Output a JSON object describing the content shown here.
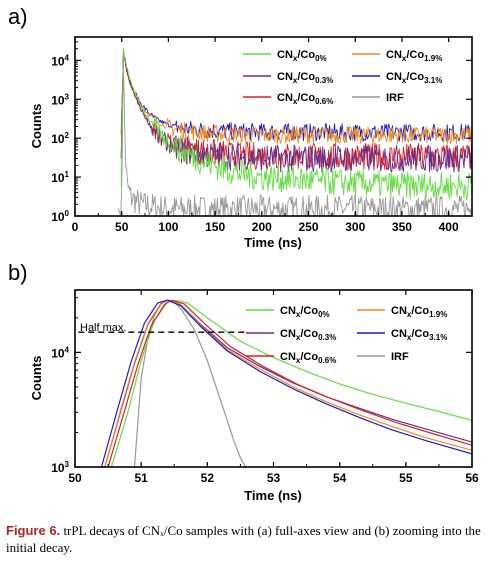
{
  "figure": {
    "caption_label": "Figure 6.",
    "caption_text": " trPL decays of CNₓ/Co samples with (a) full-axes view and (b) zooming into the initial decay."
  },
  "colors": {
    "co0": "#66dd44",
    "co03": "#6a2c8a",
    "co06": "#e02020",
    "co19": "#f08a20",
    "co31": "#1a1ad0",
    "irf": "#999999"
  },
  "chart_data": [
    {
      "panel": "a)",
      "type": "line",
      "xlabel": "Time (ns)",
      "ylabel": "Counts",
      "xlim": [
        0,
        425
      ],
      "ylim": [
        1,
        40000
      ],
      "yscale": "log",
      "xticks": [
        0,
        50,
        100,
        150,
        200,
        250,
        300,
        350,
        400
      ],
      "yticks": [
        1,
        10,
        100,
        1000,
        10000
      ],
      "ytick_labels": [
        {
          "base": "10",
          "exp": "0"
        },
        {
          "base": "10",
          "exp": "1"
        },
        {
          "base": "10",
          "exp": "2"
        },
        {
          "base": "10",
          "exp": "3"
        },
        {
          "base": "10",
          "exp": "4"
        }
      ],
      "grid": false,
      "legend_position": "top-right",
      "series": [
        {
          "key": "co0",
          "name": "CNx/Co0%",
          "sub": "0%",
          "background": 6,
          "peak": 25000,
          "x": [
            51,
            55,
            60,
            70,
            80,
            90,
            100,
            120,
            140,
            160,
            180,
            200,
            230,
            260,
            300,
            350,
            425
          ],
          "y": [
            25000,
            7000,
            2500,
            700,
            280,
            140,
            80,
            40,
            24,
            16,
            12,
            10,
            9,
            8,
            7,
            6,
            6
          ]
        },
        {
          "key": "co03",
          "name": "CNx/Co0.3%",
          "sub": "0.3%",
          "background": 30,
          "peak": 25000,
          "x": [
            51,
            55,
            60,
            70,
            80,
            90,
            100,
            120,
            140,
            160,
            180,
            200,
            230,
            260,
            300,
            350,
            425
          ],
          "y": [
            25000,
            6500,
            2200,
            600,
            220,
            110,
            70,
            45,
            38,
            34,
            32,
            31,
            30,
            30,
            30,
            30,
            30
          ]
        },
        {
          "key": "co06",
          "name": "CNx/Co0.6%",
          "sub": "0.6%",
          "background": 33,
          "peak": 25000,
          "x": [
            51,
            55,
            60,
            70,
            80,
            90,
            100,
            120,
            140,
            160,
            180,
            200,
            230,
            260,
            300,
            350,
            425
          ],
          "y": [
            25000,
            6200,
            2100,
            580,
            230,
            120,
            80,
            52,
            44,
            39,
            36,
            35,
            34,
            33,
            33,
            33,
            33
          ]
        },
        {
          "key": "co19",
          "name": "CNx/Co1.9%",
          "sub": "1.9%",
          "background": 120,
          "peak": 25000,
          "x": [
            51,
            55,
            60,
            70,
            80,
            90,
            100,
            120,
            140,
            160,
            180,
            200,
            230,
            260,
            300,
            350,
            425
          ],
          "y": [
            25000,
            6200,
            2300,
            750,
            380,
            250,
            190,
            150,
            135,
            128,
            124,
            122,
            121,
            120,
            120,
            120,
            120
          ]
        },
        {
          "key": "co31",
          "name": "CNx/Co3.1%",
          "sub": "3.1%",
          "background": 140,
          "peak": 25000,
          "x": [
            51,
            55,
            60,
            70,
            80,
            90,
            100,
            120,
            140,
            160,
            180,
            200,
            230,
            260,
            300,
            350,
            425
          ],
          "y": [
            25000,
            6000,
            2300,
            800,
            420,
            280,
            220,
            175,
            160,
            152,
            147,
            145,
            143,
            142,
            141,
            140,
            140
          ]
        },
        {
          "key": "irf",
          "name": "IRF",
          "sub": "",
          "background": 1.5,
          "peak": 25000,
          "x": [
            48,
            50,
            51,
            51.5,
            52,
            53,
            54,
            56,
            60,
            70,
            100,
            425
          ],
          "y": [
            1,
            2,
            300,
            25000,
            8000,
            300,
            30,
            6,
            3,
            2,
            1.5,
            1.5
          ]
        }
      ]
    },
    {
      "panel": "b)",
      "type": "line",
      "xlabel": "Time (ns)",
      "ylabel": "Counts",
      "xlim": [
        50,
        56
      ],
      "ylim": [
        1000,
        35000
      ],
      "yscale": "log",
      "xticks": [
        50,
        51,
        52,
        53,
        54,
        55,
        56
      ],
      "yticks": [
        1000,
        10000
      ],
      "ytick_labels": [
        {
          "base": "10",
          "exp": "3"
        },
        {
          "base": "10",
          "exp": "4"
        }
      ],
      "grid": false,
      "legend_position": "top-right",
      "annotation": {
        "text": "Half max.",
        "y": 15000,
        "x_start": 50.05,
        "x_end": 52.6
      },
      "series": [
        {
          "key": "co0",
          "name": "CNx/Co0%",
          "sub": "0%",
          "x": [
            50.55,
            50.8,
            51.0,
            51.2,
            51.4,
            51.5,
            51.7,
            52.0,
            52.5,
            53.0,
            53.5,
            54.0,
            54.5,
            55.0,
            55.5,
            56.0
          ],
          "y": [
            1000,
            3000,
            8500,
            19000,
            27500,
            28500,
            27000,
            20000,
            12500,
            9000,
            6800,
            5300,
            4300,
            3600,
            3050,
            2550
          ]
        },
        {
          "key": "co03",
          "name": "CNx/Co0.3%",
          "sub": "0.3%",
          "x": [
            50.45,
            50.7,
            50.9,
            51.1,
            51.3,
            51.4,
            51.6,
            51.9,
            52.3,
            52.8,
            53.3,
            53.8,
            54.3,
            54.8,
            55.3,
            56.0
          ],
          "y": [
            1000,
            3200,
            8000,
            17500,
            26500,
            28500,
            26000,
            17500,
            11000,
            7500,
            5400,
            4100,
            3250,
            2600,
            2150,
            1650
          ]
        },
        {
          "key": "co06",
          "name": "CNx/Co0.6%",
          "sub": "0.6%",
          "x": [
            50.5,
            50.75,
            50.95,
            51.15,
            51.35,
            51.45,
            51.65,
            51.95,
            52.35,
            52.85,
            53.35,
            53.85,
            54.35,
            54.85,
            55.35,
            56.0
          ],
          "y": [
            1000,
            3100,
            7800,
            17000,
            26000,
            28500,
            26500,
            18000,
            11200,
            7500,
            5300,
            4000,
            3100,
            2450,
            2000,
            1550
          ]
        },
        {
          "key": "co19",
          "name": "CNx/Co1.9%",
          "sub": "1.9%",
          "x": [
            50.45,
            50.7,
            50.9,
            51.1,
            51.3,
            51.4,
            51.6,
            51.9,
            52.3,
            52.8,
            53.3,
            53.8,
            54.3,
            54.8,
            55.3,
            56.0
          ],
          "y": [
            1000,
            3300,
            8200,
            17800,
            26800,
            28500,
            26000,
            17200,
            10600,
            7100,
            5000,
            3700,
            2850,
            2250,
            1800,
            1400
          ]
        },
        {
          "key": "co31",
          "name": "CNx/Co3.1%",
          "sub": "3.1%",
          "x": [
            50.4,
            50.65,
            50.85,
            51.05,
            51.25,
            51.4,
            51.6,
            51.9,
            52.3,
            52.8,
            53.3,
            53.8,
            54.3,
            54.8,
            55.3,
            56.0
          ],
          "y": [
            1000,
            3300,
            8300,
            18000,
            27000,
            28500,
            25500,
            16800,
            10300,
            6800,
            4800,
            3550,
            2700,
            2100,
            1700,
            1300
          ]
        },
        {
          "key": "irf",
          "name": "IRF",
          "sub": "",
          "x": [
            50.9,
            51.0,
            51.1,
            51.2,
            51.3,
            51.4,
            51.5,
            51.6,
            51.8,
            52.0,
            52.2,
            52.4,
            52.5,
            52.58
          ],
          "y": [
            1000,
            6000,
            13000,
            21000,
            27000,
            28500,
            27500,
            24000,
            16000,
            8500,
            3800,
            1700,
            1200,
            1000
          ]
        }
      ]
    }
  ]
}
